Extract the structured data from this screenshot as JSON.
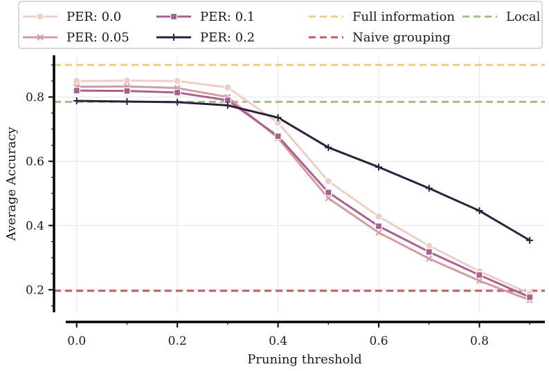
{
  "chart_data": {
    "type": "line",
    "xlabel": "Pruning threshold",
    "ylabel": "Average Accuracy",
    "xlim": [
      -0.045,
      0.93
    ],
    "ylim": [
      0.13,
      0.93
    ],
    "x_ticks": [
      "0.0",
      "0.2",
      "0.4",
      "0.6",
      "0.8"
    ],
    "x_tick_values": [
      0.0,
      0.2,
      0.4,
      0.6,
      0.8
    ],
    "y_ticks": [
      "0.2",
      "0.4",
      "0.6",
      "0.8"
    ],
    "y_tick_values": [
      0.2,
      0.4,
      0.6,
      0.8
    ],
    "grid": true,
    "legend_position": "top",
    "x": [
      0.0,
      0.1,
      0.2,
      0.3,
      0.4,
      0.5,
      0.6,
      0.7,
      0.8,
      0.9
    ],
    "series": [
      {
        "name": "PER: 0.0",
        "color": "#ebcfc7",
        "marker": "circle",
        "values": [
          0.85,
          0.851,
          0.85,
          0.83,
          0.72,
          0.538,
          0.428,
          0.337,
          0.258,
          0.188
        ]
      },
      {
        "name": "PER: 0.05",
        "color": "#d39aa5",
        "marker": "x",
        "values": [
          0.832,
          0.833,
          0.828,
          0.8,
          0.672,
          0.485,
          0.378,
          0.297,
          0.228,
          0.168
        ]
      },
      {
        "name": "PER: 0.1",
        "color": "#a8618f",
        "marker": "square",
        "values": [
          0.82,
          0.819,
          0.814,
          0.79,
          0.678,
          0.503,
          0.398,
          0.318,
          0.246,
          0.177
        ]
      },
      {
        "name": "PER: 0.2",
        "color": "#2d1e3d",
        "marker": "plus",
        "values": [
          0.788,
          0.786,
          0.784,
          0.774,
          0.736,
          0.643,
          0.582,
          0.516,
          0.446,
          0.354
        ]
      }
    ],
    "reference_lines": [
      {
        "name": "Full information",
        "color": "#eccb85",
        "value": 0.9
      },
      {
        "name": "Naive grouping",
        "color": "#c55b60",
        "value": 0.197
      },
      {
        "name": "Local",
        "color": "#9ebf86",
        "value": 0.785
      }
    ],
    "legend": [
      {
        "label": "PER: 0.0",
        "kind": "series",
        "index": 0
      },
      {
        "label": "PER: 0.1",
        "kind": "series",
        "index": 2
      },
      {
        "label": "Full information",
        "kind": "ref",
        "index": 0
      },
      {
        "label": "Local",
        "kind": "ref",
        "index": 2
      },
      {
        "label": "PER: 0.05",
        "kind": "series",
        "index": 1
      },
      {
        "label": "PER: 0.2",
        "kind": "series",
        "index": 3
      },
      {
        "label": "Naive grouping",
        "kind": "ref",
        "index": 1
      }
    ]
  }
}
